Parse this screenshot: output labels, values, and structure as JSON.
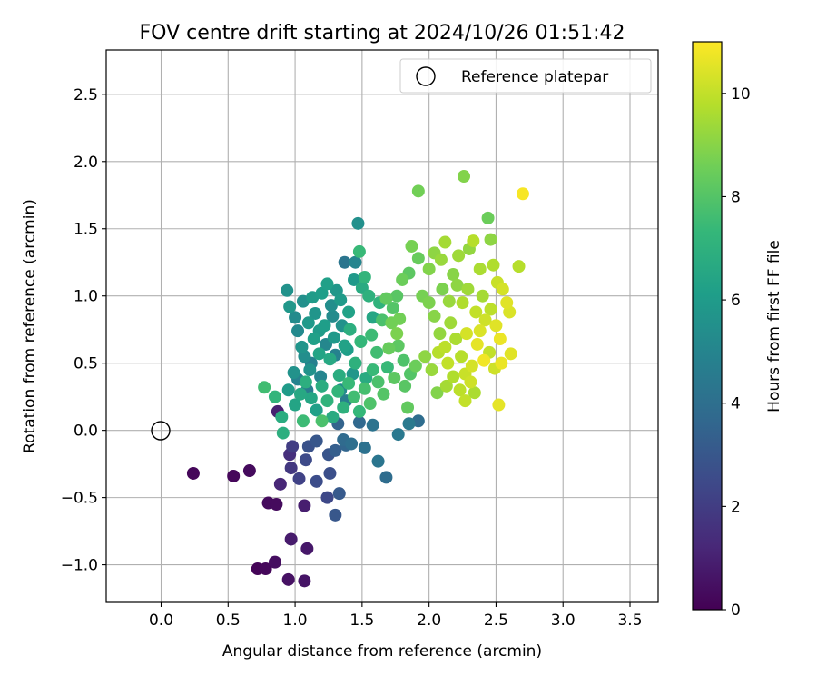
{
  "chart_data": {
    "type": "scatter",
    "title": "FOV centre drift starting at 2024/10/26 01:51:42",
    "xlabel": "Angular distance from reference (arcmin)",
    "ylabel": "Rotation from reference (arcmin)",
    "xlim": [
      -0.41,
      3.71
    ],
    "ylim": [
      -1.28,
      2.83
    ],
    "xticks": [
      0.0,
      0.5,
      1.0,
      1.5,
      2.0,
      2.5,
      3.0,
      3.5
    ],
    "xtick_labels": [
      "0.0",
      "0.5",
      "1.0",
      "1.5",
      "2.0",
      "2.5",
      "3.0",
      "3.5"
    ],
    "yticks": [
      -1.0,
      -0.5,
      0.0,
      0.5,
      1.0,
      1.5,
      2.0,
      2.5
    ],
    "ytick_labels": [
      "−1.0",
      "−0.5",
      "0.0",
      "0.5",
      "1.0",
      "1.5",
      "2.0",
      "2.5"
    ],
    "grid": true,
    "legend": {
      "position": "top-right",
      "label": "Reference platepar"
    },
    "reference_point": {
      "x": 0.0,
      "y": 0.0
    },
    "colorbar": {
      "label": "Hours from first FF file",
      "min": 0,
      "max": 11,
      "ticks": [
        0,
        2,
        4,
        6,
        8,
        10
      ],
      "tick_labels": [
        "0",
        "2",
        "4",
        "6",
        "8",
        "10"
      ],
      "colormap": "viridis",
      "colors": [
        "#440154",
        "#482878",
        "#3e4989",
        "#31688e",
        "#26828e",
        "#1f9e89",
        "#35b779",
        "#6ece58",
        "#b5de2b",
        "#fde725"
      ]
    },
    "points": [
      {
        "x": 0.24,
        "y": -0.32,
        "c": 0.2
      },
      {
        "x": 0.54,
        "y": -0.34,
        "c": 0.2
      },
      {
        "x": 0.66,
        "y": -0.3,
        "c": 0.3
      },
      {
        "x": 0.72,
        "y": -1.03,
        "c": 0.1
      },
      {
        "x": 0.78,
        "y": -1.03,
        "c": 0.2
      },
      {
        "x": 0.8,
        "y": -0.54,
        "c": 0.3
      },
      {
        "x": 0.86,
        "y": -0.55,
        "c": 0.3
      },
      {
        "x": 0.85,
        "y": -0.98,
        "c": 0.4
      },
      {
        "x": 0.95,
        "y": -1.11,
        "c": 0.5
      },
      {
        "x": 1.07,
        "y": -1.12,
        "c": 0.6
      },
      {
        "x": 1.09,
        "y": -0.88,
        "c": 0.7
      },
      {
        "x": 0.97,
        "y": -0.81,
        "c": 0.8
      },
      {
        "x": 1.07,
        "y": -0.56,
        "c": 0.9
      },
      {
        "x": 0.89,
        "y": -0.4,
        "c": 1.2
      },
      {
        "x": 0.87,
        "y": 0.14,
        "c": 1.0
      },
      {
        "x": 0.96,
        "y": -0.18,
        "c": 1.5
      },
      {
        "x": 0.97,
        "y": -0.28,
        "c": 1.8
      },
      {
        "x": 0.98,
        "y": -0.12,
        "c": 2.0
      },
      {
        "x": 1.03,
        "y": -0.36,
        "c": 2.2
      },
      {
        "x": 1.08,
        "y": -0.22,
        "c": 2.5
      },
      {
        "x": 1.1,
        "y": -0.12,
        "c": 2.8
      },
      {
        "x": 1.16,
        "y": -0.38,
        "c": 2.6
      },
      {
        "x": 1.16,
        "y": -0.08,
        "c": 3.0
      },
      {
        "x": 1.24,
        "y": -0.5,
        "c": 2.4
      },
      {
        "x": 1.25,
        "y": -0.18,
        "c": 2.9
      },
      {
        "x": 1.26,
        "y": -0.32,
        "c": 2.7
      },
      {
        "x": 1.3,
        "y": -0.63,
        "c": 3.0
      },
      {
        "x": 1.33,
        "y": -0.47,
        "c": 3.1
      },
      {
        "x": 1.3,
        "y": -0.15,
        "c": 3.3
      },
      {
        "x": 1.32,
        "y": 0.05,
        "c": 3.5
      },
      {
        "x": 1.36,
        "y": -0.07,
        "c": 3.8
      },
      {
        "x": 1.38,
        "y": -0.11,
        "c": 3.6
      },
      {
        "x": 1.42,
        "y": -0.1,
        "c": 4.0
      },
      {
        "x": 1.48,
        "y": 0.06,
        "c": 3.7
      },
      {
        "x": 1.52,
        "y": -0.13,
        "c": 4.1
      },
      {
        "x": 1.58,
        "y": 0.04,
        "c": 4.2
      },
      {
        "x": 1.62,
        "y": -0.23,
        "c": 4.3
      },
      {
        "x": 1.68,
        "y": -0.35,
        "c": 3.9
      },
      {
        "x": 1.77,
        "y": -0.03,
        "c": 4.4
      },
      {
        "x": 1.85,
        "y": 0.05,
        "c": 4.5
      },
      {
        "x": 1.92,
        "y": 0.07,
        "c": 3.9
      },
      {
        "x": 1.37,
        "y": 1.25,
        "c": 4.3
      },
      {
        "x": 1.47,
        "y": 1.54,
        "c": 5.5
      },
      {
        "x": 1.45,
        "y": 1.25,
        "c": 5.0
      },
      {
        "x": 0.94,
        "y": 1.04,
        "c": 5.6
      },
      {
        "x": 0.96,
        "y": 0.92,
        "c": 5.8
      },
      {
        "x": 1.0,
        "y": 0.84,
        "c": 5.3
      },
      {
        "x": 0.99,
        "y": 0.43,
        "c": 5.6
      },
      {
        "x": 1.05,
        "y": 0.62,
        "c": 5.7
      },
      {
        "x": 1.1,
        "y": 0.8,
        "c": 5.9
      },
      {
        "x": 1.13,
        "y": 0.99,
        "c": 6.0
      },
      {
        "x": 1.2,
        "y": 1.02,
        "c": 6.1
      },
      {
        "x": 1.24,
        "y": 1.09,
        "c": 6.2
      },
      {
        "x": 1.27,
        "y": 0.93,
        "c": 5.4
      },
      {
        "x": 1.31,
        "y": 1.04,
        "c": 5.8
      },
      {
        "x": 1.34,
        "y": 0.97,
        "c": 6.0
      },
      {
        "x": 1.4,
        "y": 0.88,
        "c": 6.3
      },
      {
        "x": 1.44,
        "y": 1.12,
        "c": 5.9
      },
      {
        "x": 1.5,
        "y": 1.06,
        "c": 6.7
      },
      {
        "x": 1.52,
        "y": 1.14,
        "c": 7.2
      },
      {
        "x": 1.48,
        "y": 1.33,
        "c": 7.4
      },
      {
        "x": 1.55,
        "y": 1.0,
        "c": 7.0
      },
      {
        "x": 1.58,
        "y": 0.84,
        "c": 6.5
      },
      {
        "x": 1.63,
        "y": 0.95,
        "c": 7.1
      },
      {
        "x": 1.02,
        "y": 0.74,
        "c": 5.2
      },
      {
        "x": 1.07,
        "y": 0.55,
        "c": 5.4
      },
      {
        "x": 1.11,
        "y": 0.45,
        "c": 5.6
      },
      {
        "x": 1.14,
        "y": 0.68,
        "c": 6.2
      },
      {
        "x": 1.18,
        "y": 0.57,
        "c": 6.4
      },
      {
        "x": 1.22,
        "y": 0.78,
        "c": 6.1
      },
      {
        "x": 1.26,
        "y": 0.53,
        "c": 6.6
      },
      {
        "x": 1.29,
        "y": 0.69,
        "c": 5.9
      },
      {
        "x": 1.33,
        "y": 0.41,
        "c": 6.8
      },
      {
        "x": 1.37,
        "y": 0.63,
        "c": 6.3
      },
      {
        "x": 1.41,
        "y": 0.75,
        "c": 6.9
      },
      {
        "x": 1.45,
        "y": 0.5,
        "c": 7.0
      },
      {
        "x": 1.49,
        "y": 0.66,
        "c": 7.3
      },
      {
        "x": 1.53,
        "y": 0.39,
        "c": 6.7
      },
      {
        "x": 1.57,
        "y": 0.71,
        "c": 7.5
      },
      {
        "x": 1.61,
        "y": 0.58,
        "c": 7.6
      },
      {
        "x": 1.65,
        "y": 0.82,
        "c": 7.8
      },
      {
        "x": 1.69,
        "y": 0.47,
        "c": 7.4
      },
      {
        "x": 1.73,
        "y": 0.91,
        "c": 8.0
      },
      {
        "x": 1.77,
        "y": 0.63,
        "c": 8.2
      },
      {
        "x": 1.81,
        "y": 0.52,
        "c": 7.9
      },
      {
        "x": 0.95,
        "y": 0.3,
        "c": 6.0
      },
      {
        "x": 1.0,
        "y": 0.19,
        "c": 6.4
      },
      {
        "x": 1.04,
        "y": 0.27,
        "c": 6.6
      },
      {
        "x": 1.08,
        "y": 0.36,
        "c": 6.9
      },
      {
        "x": 1.12,
        "y": 0.24,
        "c": 6.5
      },
      {
        "x": 1.16,
        "y": 0.15,
        "c": 6.2
      },
      {
        "x": 1.2,
        "y": 0.33,
        "c": 6.8
      },
      {
        "x": 1.24,
        "y": 0.22,
        "c": 7.1
      },
      {
        "x": 1.28,
        "y": 0.1,
        "c": 6.7
      },
      {
        "x": 1.32,
        "y": 0.29,
        "c": 7.2
      },
      {
        "x": 1.36,
        "y": 0.17,
        "c": 7.0
      },
      {
        "x": 1.4,
        "y": 0.35,
        "c": 7.4
      },
      {
        "x": 1.44,
        "y": 0.25,
        "c": 7.6
      },
      {
        "x": 1.48,
        "y": 0.14,
        "c": 7.3
      },
      {
        "x": 1.52,
        "y": 0.31,
        "c": 7.7
      },
      {
        "x": 1.56,
        "y": 0.2,
        "c": 7.9
      },
      {
        "x": 0.77,
        "y": 0.32,
        "c": 7.6
      },
      {
        "x": 0.85,
        "y": 0.25,
        "c": 7.2
      },
      {
        "x": 0.9,
        "y": 0.1,
        "c": 6.8
      },
      {
        "x": 0.91,
        "y": -0.02,
        "c": 6.9
      },
      {
        "x": 1.06,
        "y": 0.07,
        "c": 7.5
      },
      {
        "x": 1.2,
        "y": 0.07,
        "c": 7.8
      },
      {
        "x": 1.82,
        "y": 0.33,
        "c": 8.1
      },
      {
        "x": 1.84,
        "y": 0.17,
        "c": 8.3
      },
      {
        "x": 1.86,
        "y": 0.42,
        "c": 8.0
      },
      {
        "x": 1.9,
        "y": 0.48,
        "c": 8.5
      },
      {
        "x": 1.92,
        "y": 1.78,
        "c": 8.6
      },
      {
        "x": 1.87,
        "y": 1.37,
        "c": 8.7
      },
      {
        "x": 1.92,
        "y": 1.28,
        "c": 8.4
      },
      {
        "x": 1.85,
        "y": 1.17,
        "c": 8.2
      },
      {
        "x": 1.8,
        "y": 1.12,
        "c": 8.5
      },
      {
        "x": 1.76,
        "y": 1.0,
        "c": 8.1
      },
      {
        "x": 1.68,
        "y": 0.98,
        "c": 8.3
      },
      {
        "x": 1.72,
        "y": 0.8,
        "c": 8.6
      },
      {
        "x": 1.76,
        "y": 0.72,
        "c": 8.8
      },
      {
        "x": 1.95,
        "y": 1.0,
        "c": 8.7
      },
      {
        "x": 2.0,
        "y": 1.2,
        "c": 8.9
      },
      {
        "x": 2.04,
        "y": 1.32,
        "c": 9.1
      },
      {
        "x": 2.09,
        "y": 1.27,
        "c": 9.3
      },
      {
        "x": 2.12,
        "y": 1.4,
        "c": 9.5
      },
      {
        "x": 2.18,
        "y": 1.16,
        "c": 9.0
      },
      {
        "x": 2.22,
        "y": 1.3,
        "c": 9.4
      },
      {
        "x": 2.26,
        "y": 1.89,
        "c": 8.9
      },
      {
        "x": 2.3,
        "y": 1.35,
        "c": 9.2
      },
      {
        "x": 2.33,
        "y": 1.41,
        "c": 9.8
      },
      {
        "x": 2.38,
        "y": 1.2,
        "c": 9.6
      },
      {
        "x": 2.44,
        "y": 1.58,
        "c": 8.5
      },
      {
        "x": 2.46,
        "y": 1.42,
        "c": 9.1
      },
      {
        "x": 2.48,
        "y": 1.23,
        "c": 9.7
      },
      {
        "x": 2.51,
        "y": 1.1,
        "c": 10.1
      },
      {
        "x": 2.55,
        "y": 1.05,
        "c": 10.3
      },
      {
        "x": 2.58,
        "y": 0.95,
        "c": 10.5
      },
      {
        "x": 2.6,
        "y": 0.88,
        "c": 10.4
      },
      {
        "x": 2.67,
        "y": 1.22,
        "c": 9.8
      },
      {
        "x": 2.7,
        "y": 1.76,
        "c": 10.9
      },
      {
        "x": 2.52,
        "y": 0.19,
        "c": 10.6
      },
      {
        "x": 2.61,
        "y": 0.57,
        "c": 10.5
      },
      {
        "x": 2.54,
        "y": 0.5,
        "c": 10.7
      },
      {
        "x": 2.49,
        "y": 0.46,
        "c": 10.2
      },
      {
        "x": 2.45,
        "y": 0.58,
        "c": 10.0
      },
      {
        "x": 2.41,
        "y": 0.52,
        "c": 10.8
      },
      {
        "x": 2.36,
        "y": 0.64,
        "c": 10.6
      },
      {
        "x": 2.32,
        "y": 0.48,
        "c": 10.3
      },
      {
        "x": 2.27,
        "y": 0.42,
        "c": 10.1
      },
      {
        "x": 2.24,
        "y": 0.55,
        "c": 9.8
      },
      {
        "x": 2.2,
        "y": 0.68,
        "c": 9.6
      },
      {
        "x": 2.16,
        "y": 0.8,
        "c": 9.4
      },
      {
        "x": 2.12,
        "y": 0.62,
        "c": 9.9
      },
      {
        "x": 2.08,
        "y": 0.72,
        "c": 9.2
      },
      {
        "x": 2.04,
        "y": 0.85,
        "c": 9.0
      },
      {
        "x": 2.0,
        "y": 0.95,
        "c": 8.8
      },
      {
        "x": 1.97,
        "y": 0.55,
        "c": 9.1
      },
      {
        "x": 2.02,
        "y": 0.45,
        "c": 9.3
      },
      {
        "x": 2.06,
        "y": 0.28,
        "c": 8.9
      },
      {
        "x": 2.13,
        "y": 0.33,
        "c": 9.5
      },
      {
        "x": 2.18,
        "y": 0.4,
        "c": 9.7
      },
      {
        "x": 2.23,
        "y": 0.3,
        "c": 9.9
      },
      {
        "x": 2.27,
        "y": 0.22,
        "c": 10.0
      },
      {
        "x": 2.31,
        "y": 0.36,
        "c": 10.2
      },
      {
        "x": 2.34,
        "y": 0.28,
        "c": 9.6
      },
      {
        "x": 2.38,
        "y": 0.74,
        "c": 10.4
      },
      {
        "x": 2.42,
        "y": 0.82,
        "c": 10.2
      },
      {
        "x": 2.46,
        "y": 0.9,
        "c": 9.9
      },
      {
        "x": 2.5,
        "y": 0.78,
        "c": 10.5
      },
      {
        "x": 2.53,
        "y": 0.68,
        "c": 10.7
      },
      {
        "x": 2.29,
        "y": 1.05,
        "c": 9.4
      },
      {
        "x": 2.25,
        "y": 0.95,
        "c": 9.7
      },
      {
        "x": 2.21,
        "y": 1.08,
        "c": 9.1
      },
      {
        "x": 2.15,
        "y": 0.96,
        "c": 9.3
      },
      {
        "x": 2.1,
        "y": 1.05,
        "c": 8.8
      },
      {
        "x": 2.07,
        "y": 0.58,
        "c": 9.8
      },
      {
        "x": 2.14,
        "y": 0.5,
        "c": 10.0
      },
      {
        "x": 2.28,
        "y": 0.72,
        "c": 10.3
      },
      {
        "x": 2.35,
        "y": 0.88,
        "c": 10.0
      },
      {
        "x": 2.4,
        "y": 1.0,
        "c": 9.5
      },
      {
        "x": 1.58,
        "y": 0.45,
        "c": 7.4
      },
      {
        "x": 1.62,
        "y": 0.36,
        "c": 7.8
      },
      {
        "x": 1.66,
        "y": 0.27,
        "c": 8.0
      },
      {
        "x": 1.7,
        "y": 0.61,
        "c": 8.4
      },
      {
        "x": 1.74,
        "y": 0.39,
        "c": 8.2
      },
      {
        "x": 1.78,
        "y": 0.83,
        "c": 8.6
      },
      {
        "x": 1.06,
        "y": 0.96,
        "c": 5.5
      },
      {
        "x": 1.15,
        "y": 0.87,
        "c": 5.7
      },
      {
        "x": 1.18,
        "y": 0.74,
        "c": 6.0
      },
      {
        "x": 1.28,
        "y": 0.85,
        "c": 5.3
      },
      {
        "x": 1.35,
        "y": 0.78,
        "c": 5.6
      },
      {
        "x": 1.39,
        "y": 0.6,
        "c": 6.1
      },
      {
        "x": 1.43,
        "y": 0.42,
        "c": 5.8
      },
      {
        "x": 1.12,
        "y": 0.5,
        "c": 4.8
      },
      {
        "x": 1.19,
        "y": 0.4,
        "c": 5.0
      },
      {
        "x": 1.23,
        "y": 0.64,
        "c": 5.1
      },
      {
        "x": 1.3,
        "y": 0.56,
        "c": 4.9
      },
      {
        "x": 1.34,
        "y": 0.3,
        "c": 5.2
      },
      {
        "x": 1.38,
        "y": 0.22,
        "c": 4.7
      },
      {
        "x": 1.09,
        "y": 0.3,
        "c": 4.6
      },
      {
        "x": 1.02,
        "y": 0.38,
        "c": 4.9
      }
    ]
  }
}
